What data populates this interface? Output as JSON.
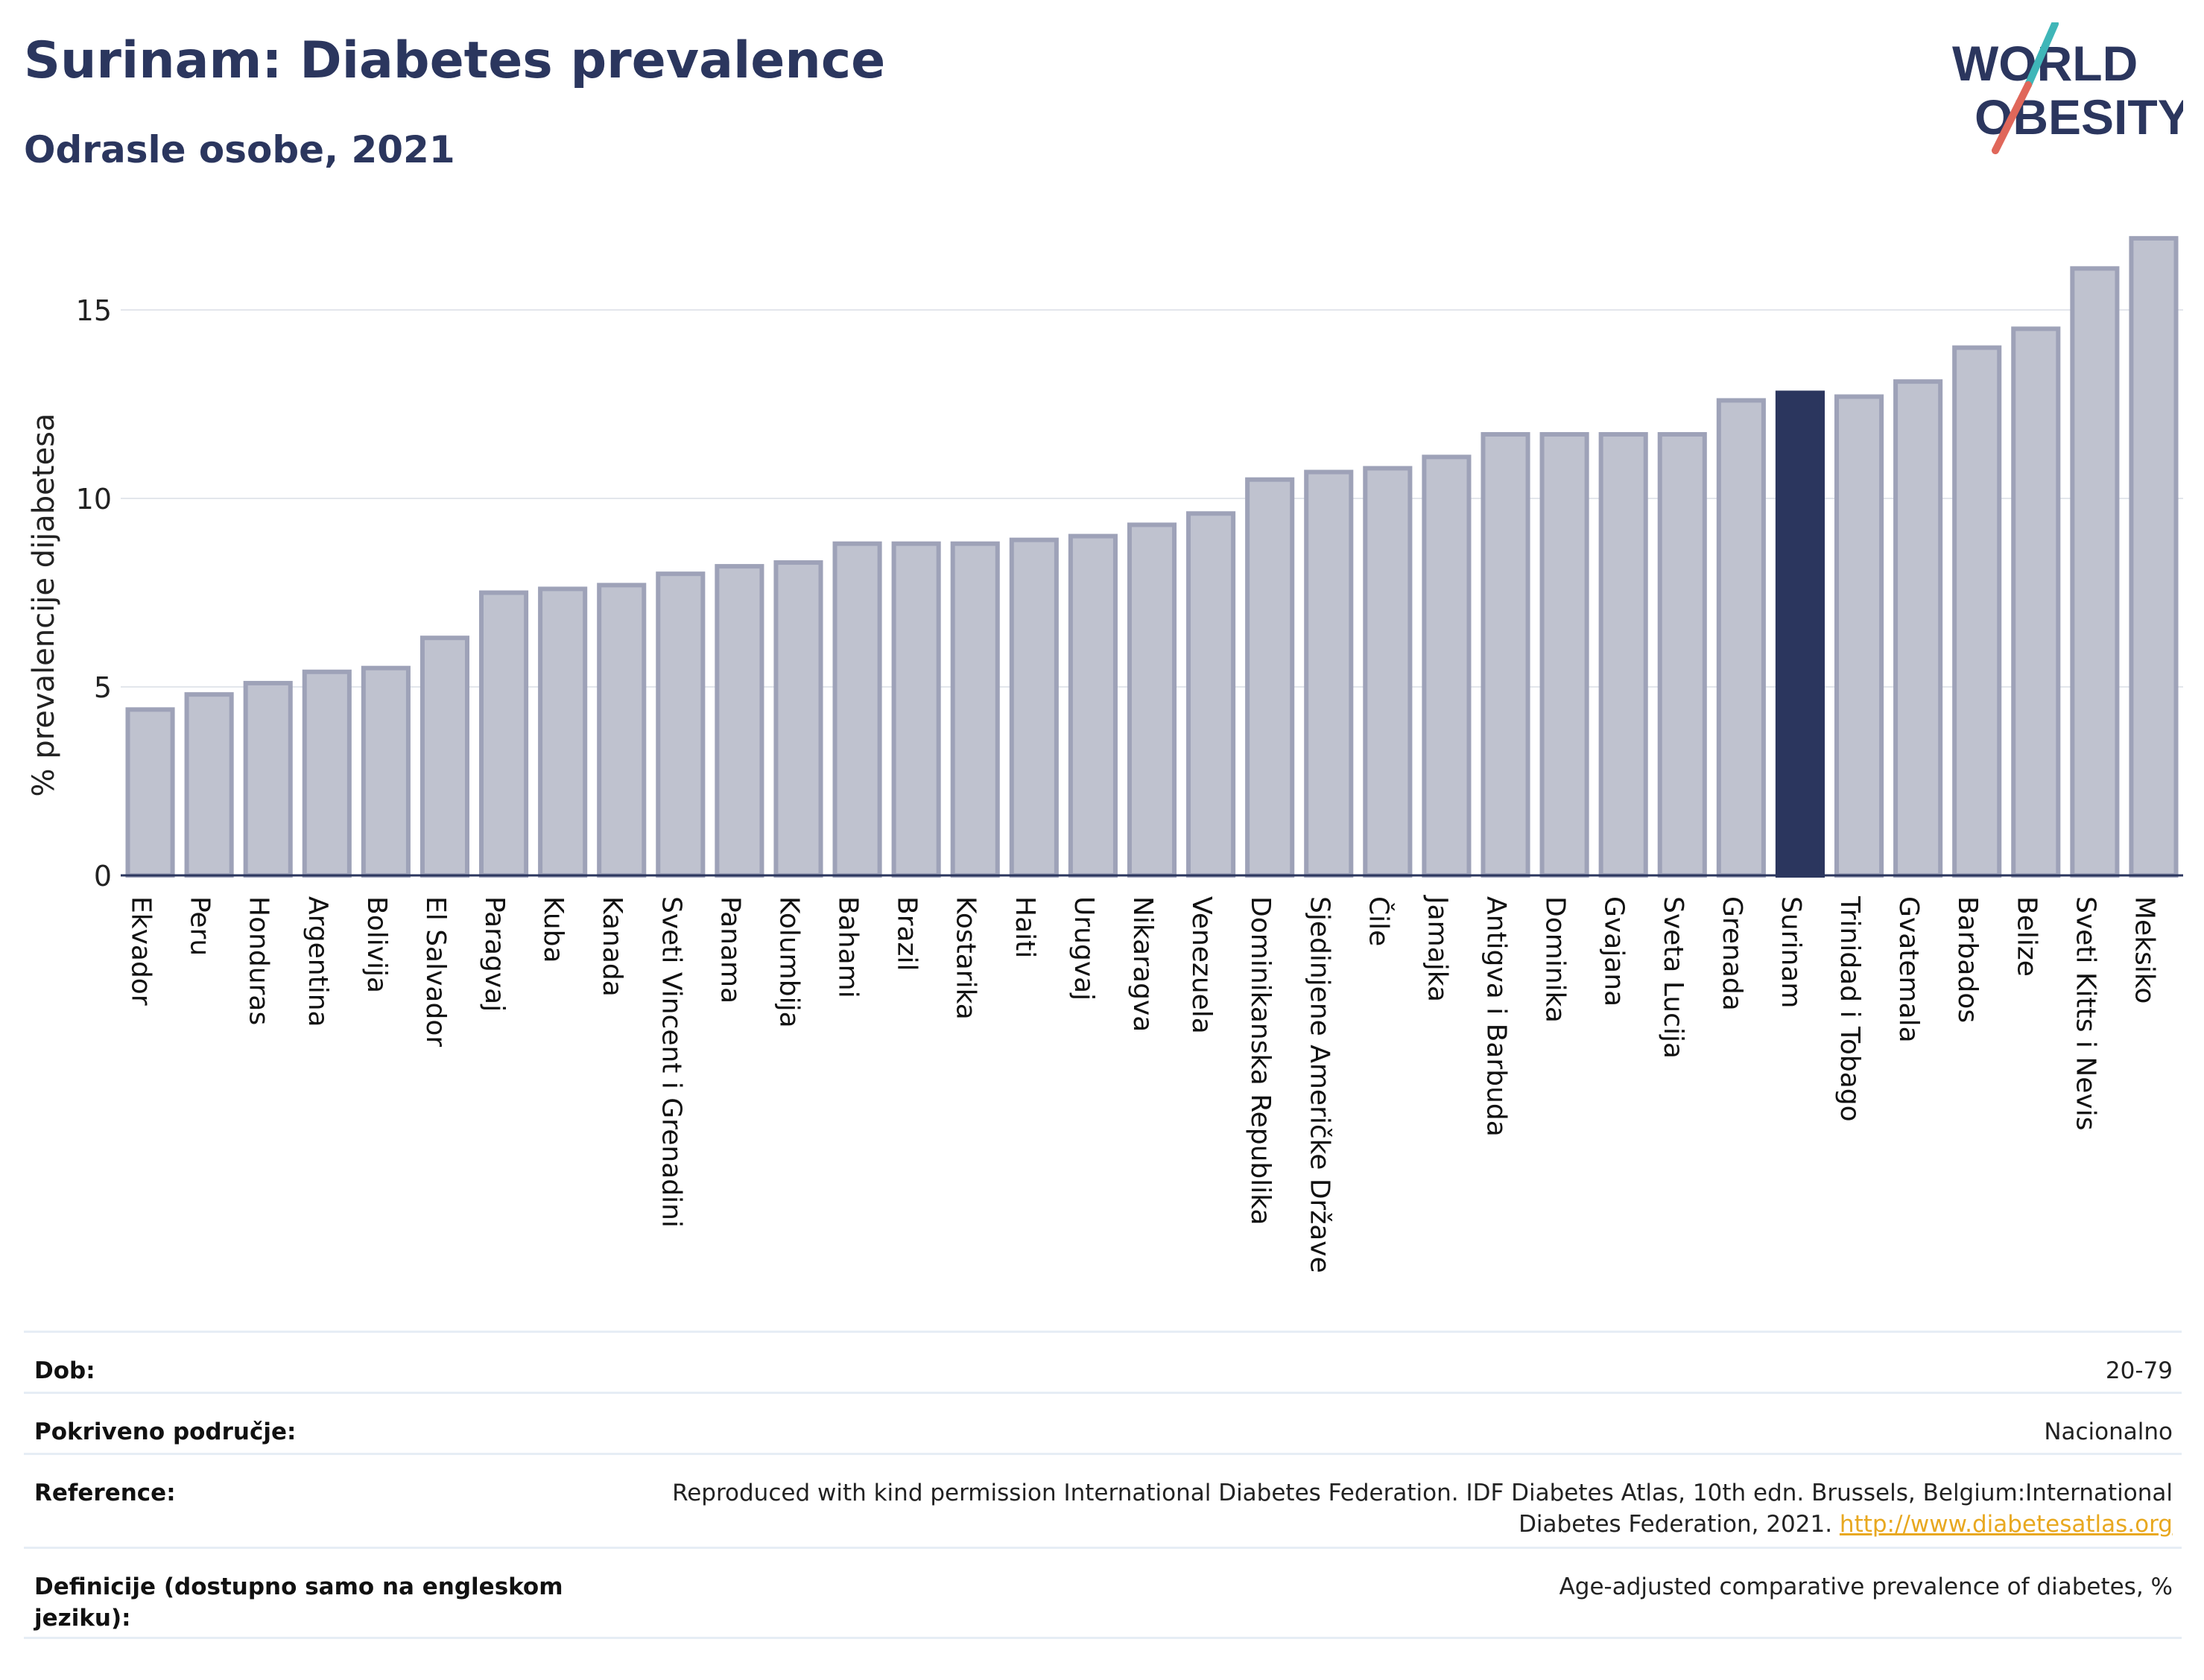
{
  "header": {
    "title": "Surinam: Diabetes prevalence",
    "subtitle": "Odrasle osobe, 2021"
  },
  "logo": {
    "line1": "WORLD",
    "line2": "OBESITY",
    "colors": {
      "text": "#2b365e",
      "slash_teal": "#3fb6b8",
      "slash_coral": "#e0675a"
    }
  },
  "chart_data": {
    "type": "bar",
    "title": "",
    "xlabel": "",
    "ylabel": "% prevalencije dijabetesa",
    "ylim": [
      0,
      17
    ],
    "yticks": [
      0,
      5,
      10,
      15
    ],
    "grid": true,
    "highlight": "Surinam",
    "colors": {
      "bar": "#bfc2cf",
      "bar_edge": "#9ea2b8",
      "highlight": "#2b365e"
    },
    "categories": [
      "Ekvador",
      "Peru",
      "Honduras",
      "Argentina",
      "Bolivija",
      "El Salvador",
      "Paragvaj",
      "Kuba",
      "Kanada",
      "Sveti Vincent i Grenadini",
      "Panama",
      "Kolumbija",
      "Bahami",
      "Brazil",
      "Kostarika",
      "Haiti",
      "Urugvaj",
      "Nikaragva",
      "Venezuela",
      "Dominikanska Republika",
      "Sjedinjene Američke Države",
      "Čile",
      "Jamajka",
      "Antigva i Barbuda",
      "Dominika",
      "Gvajana",
      "Sveta Lucija",
      "Grenada",
      "Surinam",
      "Trinidad i Tobago",
      "Gvatemala",
      "Barbados",
      "Belize",
      "Sveti Kitts i Nevis",
      "Meksiko"
    ],
    "values": [
      4.4,
      4.8,
      5.1,
      5.4,
      5.5,
      6.3,
      7.5,
      7.6,
      7.7,
      8.0,
      8.2,
      8.3,
      8.8,
      8.8,
      8.8,
      8.9,
      9.0,
      9.3,
      9.6,
      10.5,
      10.7,
      10.8,
      11.1,
      11.7,
      11.7,
      11.7,
      11.7,
      12.6,
      12.8,
      12.7,
      13.1,
      14.0,
      14.5,
      16.1,
      16.9
    ]
  },
  "meta": {
    "rows": [
      {
        "label": "Dob:",
        "value": "20-79"
      },
      {
        "label": "Pokriveno područje:",
        "value": "Nacionalno"
      },
      {
        "label": "Reference:",
        "value": "Reproduced with kind permission International Diabetes Federation.  IDF Diabetes Atlas, 10th edn. Brussels, Belgium:International Diabetes Federation, 2021.",
        "link": "http://www.diabetesatlas.org"
      },
      {
        "label": "Definicije (dostupno samo na engleskom jeziku):",
        "value": "Age-adjusted comparative prevalence of diabetes, %"
      }
    ]
  }
}
